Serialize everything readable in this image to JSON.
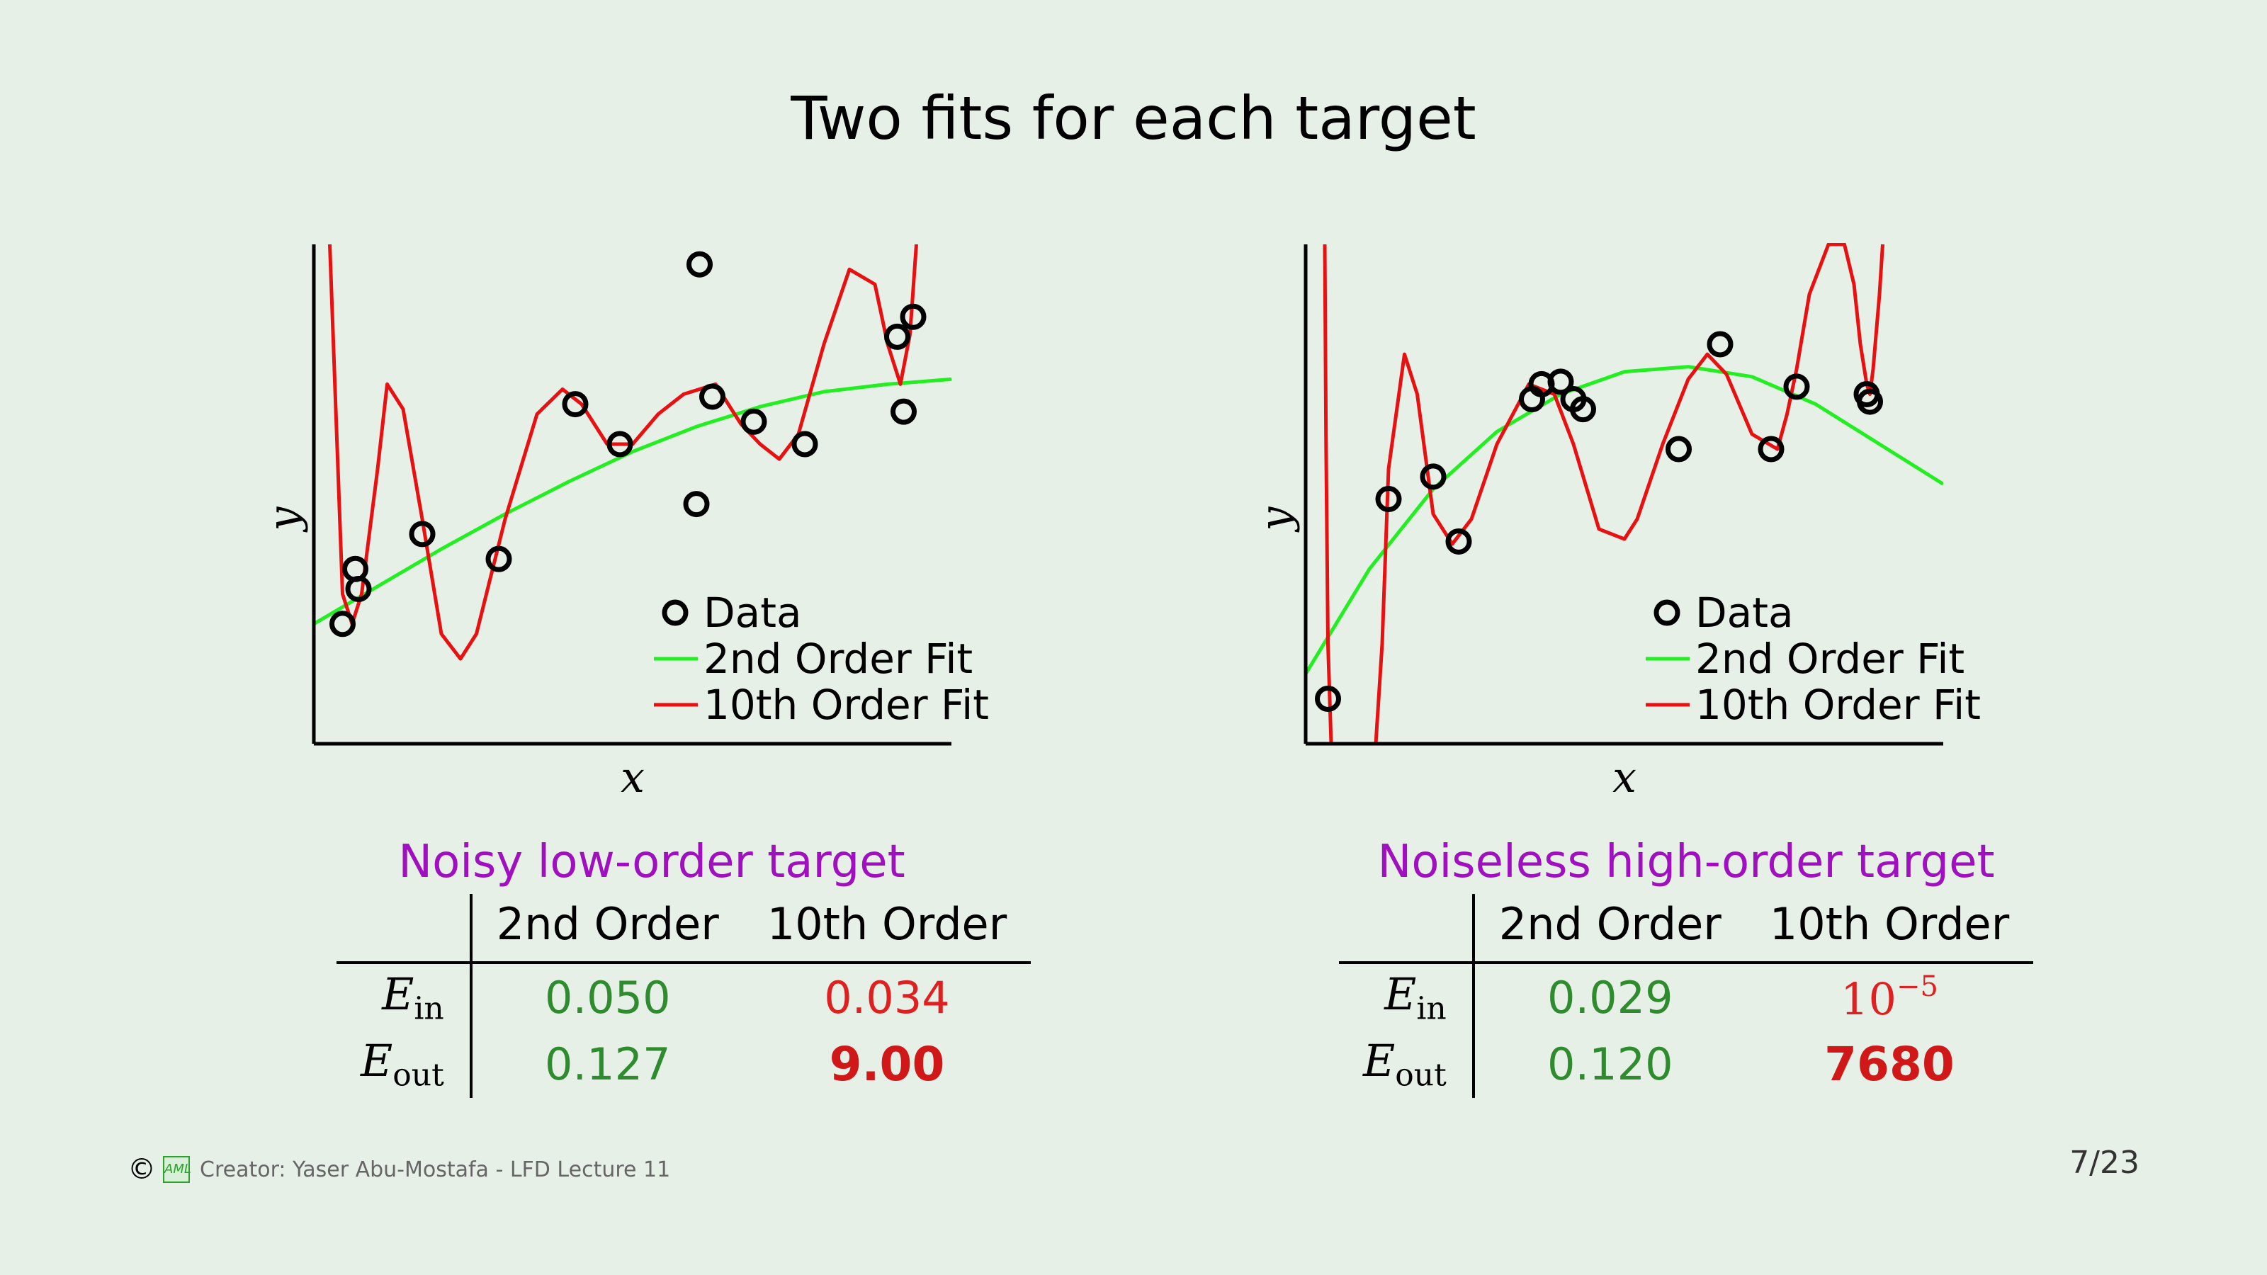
{
  "title": "Two fits for each target",
  "chart_data": [
    {
      "type": "scatter",
      "xlabel": "x",
      "ylabel": "y",
      "xlim": [
        0,
        1
      ],
      "ylim": [
        0,
        1
      ],
      "grid": false,
      "legend_position": "bottom-right",
      "legend": [
        "Data",
        "2nd Order Fit",
        "10th Order Fit"
      ],
      "points": [
        [
          0.045,
          0.24
        ],
        [
          0.065,
          0.35
        ],
        [
          0.07,
          0.31
        ],
        [
          0.17,
          0.42
        ],
        [
          0.29,
          0.37
        ],
        [
          0.41,
          0.68
        ],
        [
          0.48,
          0.6
        ],
        [
          0.6,
          0.48
        ],
        [
          0.605,
          0.96
        ],
        [
          0.625,
          0.695
        ],
        [
          0.69,
          0.645
        ],
        [
          0.77,
          0.6
        ],
        [
          0.915,
          0.815
        ],
        [
          0.94,
          0.855
        ],
        [
          0.925,
          0.665
        ]
      ],
      "series": [
        {
          "name": "2nd Order Fit",
          "color": "#22ee22",
          "x": [
            0,
            0.1,
            0.2,
            0.3,
            0.4,
            0.5,
            0.6,
            0.7,
            0.8,
            0.9,
            1.0
          ],
          "y": [
            0.24,
            0.315,
            0.39,
            0.46,
            0.525,
            0.585,
            0.635,
            0.675,
            0.705,
            0.72,
            0.73
          ]
        },
        {
          "name": "10th Order Fit",
          "color": "#e81010",
          "x": [
            0.025,
            0.035,
            0.045,
            0.06,
            0.075,
            0.1,
            0.115,
            0.14,
            0.17,
            0.2,
            0.23,
            0.255,
            0.3,
            0.35,
            0.39,
            0.42,
            0.46,
            0.5,
            0.54,
            0.58,
            0.63,
            0.67,
            0.7,
            0.73,
            0.76,
            0.8,
            0.84,
            0.88,
            0.9,
            0.92,
            0.935,
            0.945
          ],
          "y": [
            1.0,
            0.65,
            0.3,
            0.24,
            0.3,
            0.55,
            0.72,
            0.67,
            0.45,
            0.22,
            0.17,
            0.22,
            0.45,
            0.66,
            0.71,
            0.68,
            0.6,
            0.6,
            0.66,
            0.7,
            0.72,
            0.64,
            0.6,
            0.57,
            0.62,
            0.8,
            0.95,
            0.92,
            0.8,
            0.72,
            0.82,
            1.0
          ]
        }
      ]
    },
    {
      "type": "scatter",
      "xlabel": "x",
      "ylabel": "y",
      "xlim": [
        0,
        1
      ],
      "ylim": [
        0,
        1
      ],
      "grid": false,
      "legend_position": "bottom-right",
      "legend": [
        "Data",
        "2nd Order Fit",
        "10th Order Fit"
      ],
      "points": [
        [
          0.035,
          0.09
        ],
        [
          0.13,
          0.49
        ],
        [
          0.2,
          0.535
        ],
        [
          0.24,
          0.405
        ],
        [
          0.355,
          0.69
        ],
        [
          0.37,
          0.72
        ],
        [
          0.4,
          0.725
        ],
        [
          0.42,
          0.69
        ],
        [
          0.435,
          0.67
        ],
        [
          0.585,
          0.59
        ],
        [
          0.65,
          0.8
        ],
        [
          0.73,
          0.59
        ],
        [
          0.77,
          0.715
        ],
        [
          0.88,
          0.7
        ],
        [
          0.885,
          0.685
        ]
      ],
      "series": [
        {
          "name": "2nd Order Fit",
          "color": "#22ee22",
          "x": [
            0,
            0.1,
            0.2,
            0.3,
            0.4,
            0.5,
            0.6,
            0.7,
            0.8,
            0.9,
            1.0
          ],
          "y": [
            0.14,
            0.35,
            0.51,
            0.625,
            0.7,
            0.745,
            0.755,
            0.735,
            0.68,
            0.6,
            0.52
          ]
        },
        {
          "name": "10th Order Fit",
          "color": "#e81010",
          "x": [
            0.03,
            0.032,
            0.035,
            0.04,
            0.05,
            0.08,
            0.11,
            0.12,
            0.13,
            0.155,
            0.175,
            0.2,
            0.23,
            0.26,
            0.3,
            0.35,
            0.39,
            0.42,
            0.46,
            0.5,
            0.52,
            0.56,
            0.6,
            0.63,
            0.66,
            0.7,
            0.74,
            0.755,
            0.77,
            0.79,
            0.82,
            0.845,
            0.86,
            0.87,
            0.88,
            0.885,
            0.89,
            0.9,
            0.905
          ],
          "y": [
            1.0,
            0.6,
            0.2,
            0.0,
            0.0,
            0.0,
            0.0,
            0.2,
            0.55,
            0.78,
            0.7,
            0.46,
            0.4,
            0.45,
            0.6,
            0.72,
            0.7,
            0.6,
            0.43,
            0.41,
            0.45,
            0.6,
            0.73,
            0.78,
            0.74,
            0.62,
            0.59,
            0.66,
            0.75,
            0.9,
            1.0,
            1.0,
            0.92,
            0.8,
            0.72,
            0.7,
            0.75,
            0.9,
            1.0
          ]
        }
      ]
    }
  ],
  "panels": {
    "left": {
      "caption": "Noisy low-order target",
      "col1": "2nd Order",
      "col2": "10th Order",
      "e_in_label": "E",
      "e_in_sub": "in",
      "e_out_label": "E",
      "e_out_sub": "out",
      "e_in_2nd": "0.050",
      "e_in_10th": "0.034",
      "e_out_2nd": "0.127",
      "e_out_10th": "9.00"
    },
    "right": {
      "caption": "Noiseless high-order target",
      "col1": "2nd Order",
      "col2": "10th Order",
      "e_in_label": "E",
      "e_in_sub": "in",
      "e_out_label": "E",
      "e_out_sub": "out",
      "e_in_2nd": "0.029",
      "e_in_10th_base": "10",
      "e_in_10th_exp": "−5",
      "e_out_2nd": "0.120",
      "e_out_10th": "7680"
    }
  },
  "footer": {
    "copyright_symbol": "©",
    "logo_text": "AML",
    "creator": "Creator: Yaser Abu-Mostafa - LFD Lecture 11",
    "page": "7/23"
  }
}
